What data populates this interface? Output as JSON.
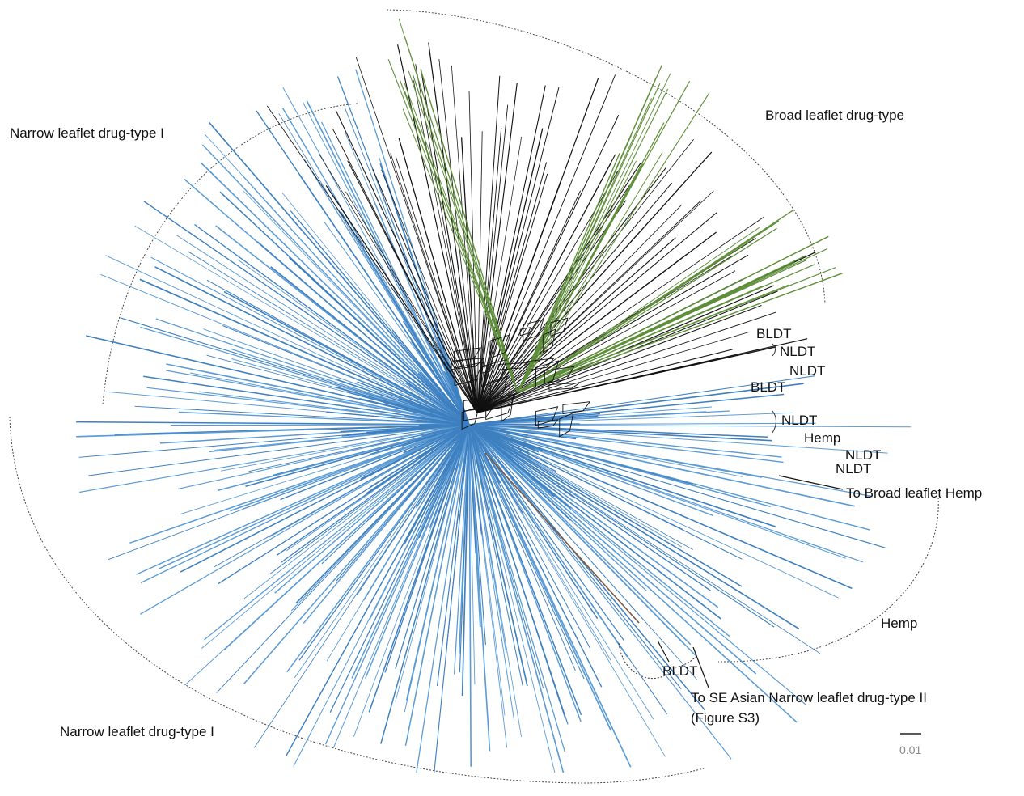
{
  "colors": {
    "blue": "#5b9bd5",
    "blue_dark": "#3d7fbf",
    "green": "#5f8f3a",
    "black": "#111111",
    "brown": "#7a5a45",
    "arc": "#444444"
  },
  "group_labels": {
    "nldt_top": "Narrow leaflet drug-type I",
    "bldt": "Broad leaflet drug-type",
    "hemp": "Hemp",
    "nldt_bottom": "Narrow leaflet drug-type I"
  },
  "tip_labels": {
    "bldt_1": "BLDT",
    "nldt_1": "NLDT",
    "nldt_2": "NLDT",
    "bldt_2": "BLDT",
    "nldt_3": "NLDT",
    "hemp_1": "Hemp",
    "nldt_4": "NLDT",
    "nldt_5": "NLDT",
    "to_broad_hemp": "To Broad leaflet Hemp",
    "bldt_3": "BLDT",
    "to_se_asian": "To SE Asian Narrow leaflet drug-type II",
    "figure_ref": "(Figure S3)"
  },
  "scale_bar": {
    "value": "0.01"
  }
}
